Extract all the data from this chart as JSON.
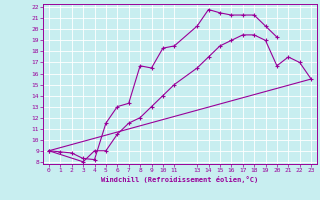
{
  "xlabel": "Windchill (Refroidissement éolien,°C)",
  "background_color": "#c8eef0",
  "line_color": "#990099",
  "grid_color": "#ffffff",
  "xlim": [
    -0.5,
    23.5
  ],
  "ylim": [
    7.8,
    22.3
  ],
  "xticks": [
    0,
    1,
    2,
    3,
    4,
    5,
    6,
    7,
    8,
    9,
    10,
    11,
    13,
    14,
    15,
    16,
    17,
    18,
    19,
    20,
    21,
    22,
    23
  ],
  "yticks": [
    8,
    9,
    10,
    11,
    12,
    13,
    14,
    15,
    16,
    17,
    18,
    19,
    20,
    21,
    22
  ],
  "line1_x": [
    0,
    1,
    2,
    3,
    4,
    5,
    6,
    7,
    8,
    9,
    10,
    11,
    13,
    14,
    15,
    16,
    17,
    18,
    19,
    20
  ],
  "line1_y": [
    9.0,
    8.9,
    8.8,
    8.3,
    8.2,
    11.5,
    13.0,
    13.3,
    16.7,
    16.5,
    18.3,
    18.5,
    20.3,
    21.8,
    21.5,
    21.3,
    21.3,
    21.3,
    20.3,
    19.3
  ],
  "line2_x": [
    0,
    3,
    4,
    5,
    6,
    7,
    8,
    9,
    10,
    11,
    13,
    14,
    15,
    16,
    17,
    18,
    19,
    20,
    21,
    22,
    23
  ],
  "line2_y": [
    9.0,
    8.0,
    9.0,
    9.0,
    10.5,
    11.5,
    12.0,
    13.0,
    14.0,
    15.0,
    16.5,
    17.5,
    18.5,
    19.0,
    19.5,
    19.5,
    19.0,
    16.7,
    17.5,
    17.0,
    15.5
  ],
  "line3_x": [
    0,
    23
  ],
  "line3_y": [
    9.0,
    15.5
  ]
}
